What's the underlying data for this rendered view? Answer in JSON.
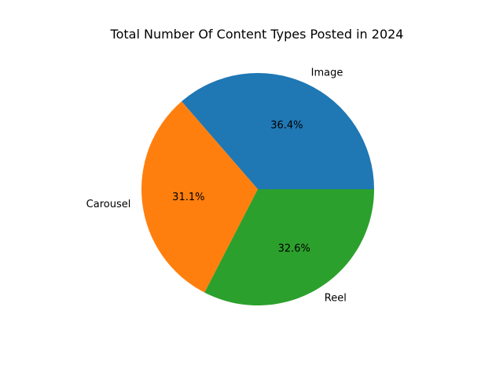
{
  "chart_data": {
    "type": "pie",
    "title": "Total Number Of Content Types Posted in 2024",
    "start_angle_deg": 0,
    "direction": "counterclockwise",
    "slices": [
      {
        "label": "Image",
        "pct_label": "36.4%",
        "value": 36.4,
        "color": "#1f77b4"
      },
      {
        "label": "Carousel",
        "pct_label": "31.1%",
        "value": 31.1,
        "color": "#ff7f0e"
      },
      {
        "label": "Reel",
        "pct_label": "32.6%",
        "value": 32.6,
        "color": "#2ca02c"
      }
    ]
  }
}
